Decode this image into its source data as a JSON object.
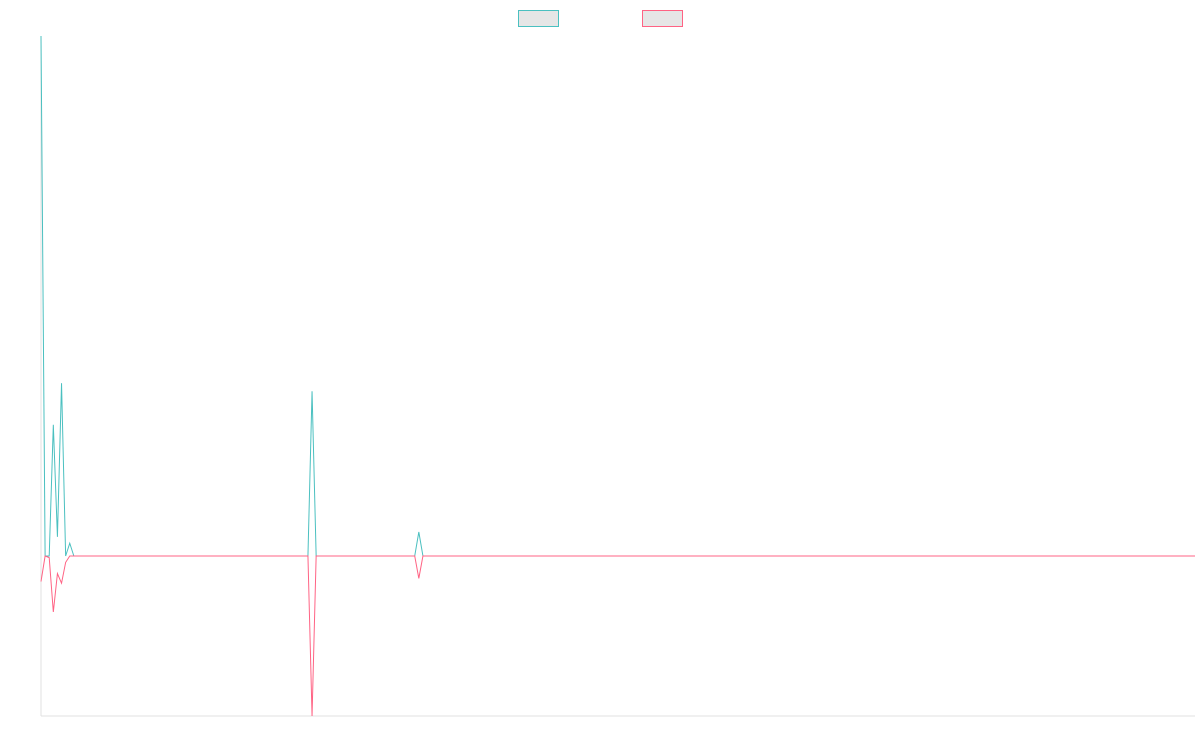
{
  "chart_data": {
    "type": "line",
    "title": "",
    "xlabel": "",
    "ylabel": "",
    "grid": false,
    "legend_position": "top-center",
    "xlim": [
      0,
      281
    ],
    "ylim": [
      -100,
      325
    ],
    "series": [
      {
        "name": "",
        "color": "#4bc0c0",
        "fill": "#e6e6e6",
        "points": [
          [
            0,
            325
          ],
          [
            1,
            0
          ],
          [
            2,
            0
          ],
          [
            3,
            82
          ],
          [
            4,
            12
          ],
          [
            5,
            108
          ],
          [
            6,
            0
          ],
          [
            7,
            8
          ],
          [
            8,
            0
          ],
          [
            65,
            0
          ],
          [
            66,
            103
          ],
          [
            67,
            0
          ],
          [
            91,
            0
          ],
          [
            92,
            15
          ],
          [
            93,
            0
          ],
          [
            281,
            0
          ]
        ]
      },
      {
        "name": "",
        "color": "#ff6384",
        "fill": "#e6e6e6",
        "points": [
          [
            0,
            -16
          ],
          [
            1,
            0
          ],
          [
            2,
            -1
          ],
          [
            3,
            -35
          ],
          [
            4,
            -11
          ],
          [
            5,
            -17
          ],
          [
            6,
            -4
          ],
          [
            7,
            0
          ],
          [
            8,
            0
          ],
          [
            65,
            0
          ],
          [
            66,
            -100
          ],
          [
            67,
            0
          ],
          [
            91,
            0
          ],
          [
            92,
            -14
          ],
          [
            93,
            0
          ],
          [
            281,
            0
          ]
        ]
      }
    ]
  }
}
